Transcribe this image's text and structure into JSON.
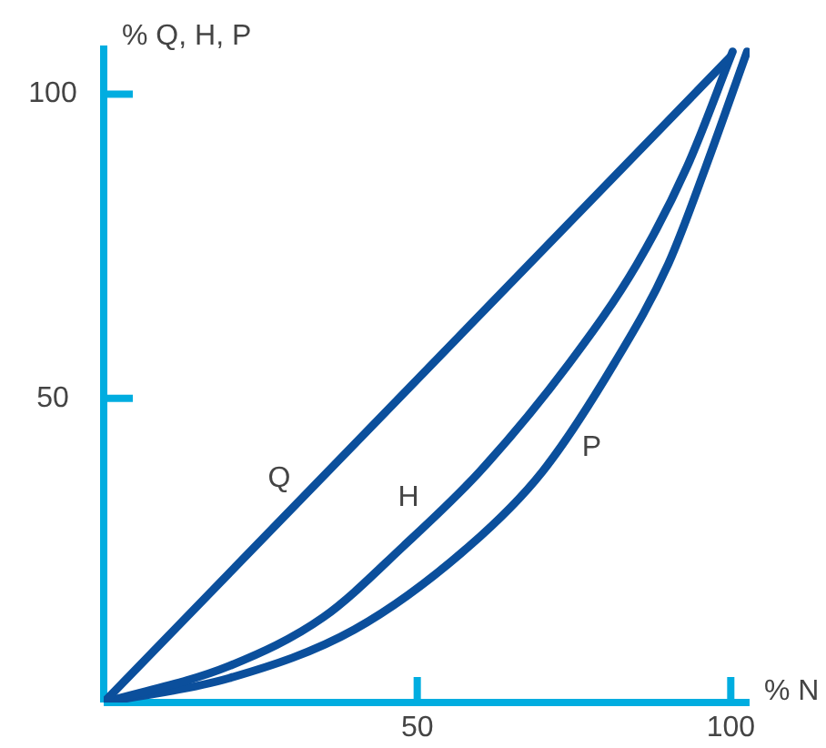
{
  "chart_data": {
    "type": "line",
    "xlabel": "% N",
    "ylabel": "% Q, H, P",
    "xlim": [
      0,
      103
    ],
    "ylim": [
      0,
      108
    ],
    "xticks": [
      50,
      100
    ],
    "yticks": [
      50,
      100
    ],
    "grid": false,
    "legend": false,
    "marker": "none",
    "line_style": "solid",
    "series": [
      {
        "name": "Q",
        "color": "#0b4f9c",
        "x": [
          0,
          99.8
        ],
        "values": [
          0,
          106
        ]
      },
      {
        "name": "H",
        "color": "#0b4f9c",
        "x": [
          0,
          20,
          35,
          47.8,
          60,
          74.2,
          85,
          93,
          100.3
        ],
        "values": [
          0,
          6,
          14,
          25.7,
          38,
          55.7,
          72,
          88,
          107
        ]
      },
      {
        "name": "P",
        "color": "#0b4f9c",
        "x": [
          0,
          20,
          40,
          58.3,
          70,
          81.4,
          90,
          96,
          102.6
        ],
        "values": [
          0,
          4,
          12,
          25.7,
          38,
          55.7,
          72,
          88,
          107
        ]
      }
    ]
  }
}
